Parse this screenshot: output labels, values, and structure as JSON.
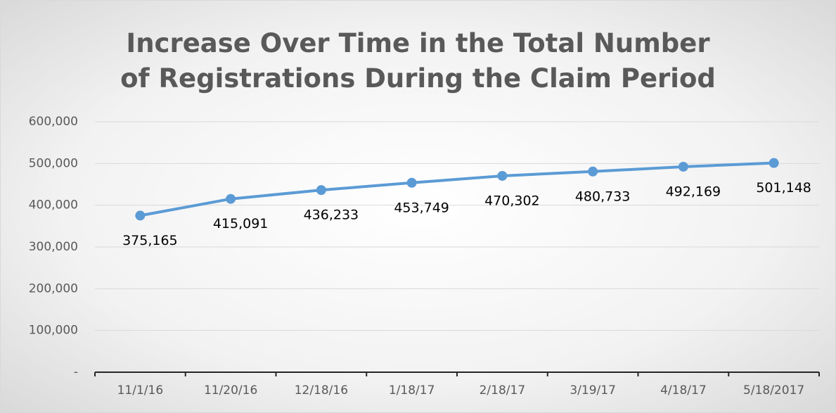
{
  "chart_data": {
    "type": "line",
    "title": "Increase Over Time in the Total Number of Registrations During the Claim Period",
    "categories": [
      "11/1/16",
      "11/20/16",
      "12/18/16",
      "1/18/17",
      "2/18/17",
      "3/19/17",
      "4/18/17",
      "5/18/2017"
    ],
    "values": [
      375165,
      415091,
      436233,
      453749,
      470302,
      480733,
      492169,
      501148
    ],
    "value_labels": [
      "375,165",
      "415,091",
      "436,233",
      "453,749",
      "470,302",
      "480,733",
      "492,169",
      "501,148"
    ],
    "color": "#5b9bd5",
    "ylim": [
      0,
      600000
    ],
    "yticks": [
      {
        "value": 0,
        "label": "-"
      },
      {
        "value": 100000,
        "label": "100,000"
      },
      {
        "value": 200000,
        "label": "200,000"
      },
      {
        "value": 300000,
        "label": "300,000"
      },
      {
        "value": 400000,
        "label": "400,000"
      },
      {
        "value": 500000,
        "label": "500,000"
      },
      {
        "value": 600000,
        "label": "600,000"
      }
    ],
    "grid": true
  }
}
